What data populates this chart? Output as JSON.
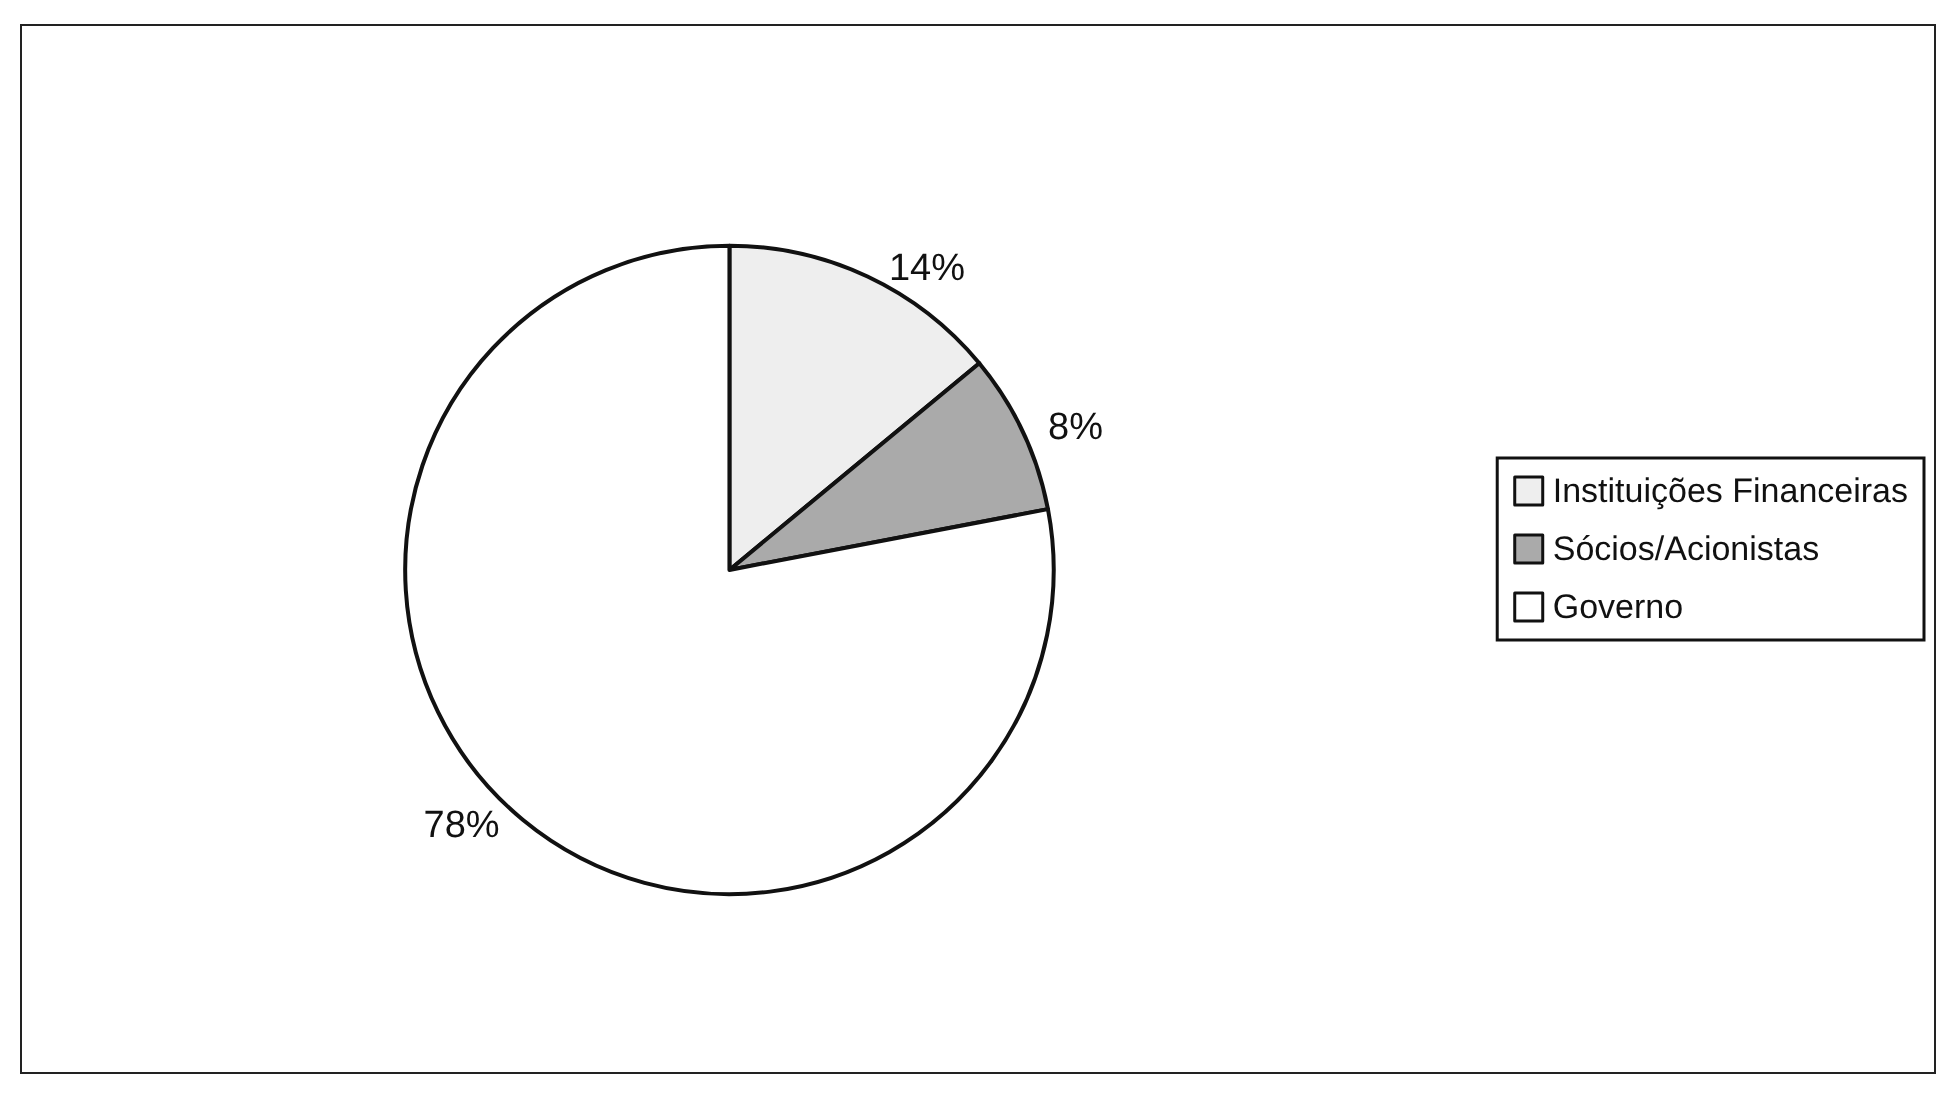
{
  "chart_data": {
    "type": "pie",
    "categories": [
      "Instituições Financeiras",
      "Sócios/Acionistas",
      "Governo"
    ],
    "values": [
      14,
      8,
      78
    ],
    "colors": [
      "#eeeeee",
      "#aaaaaa",
      "#ffffff"
    ],
    "value_labels": [
      "14%",
      "8%",
      "78%"
    ],
    "legend": "right"
  }
}
